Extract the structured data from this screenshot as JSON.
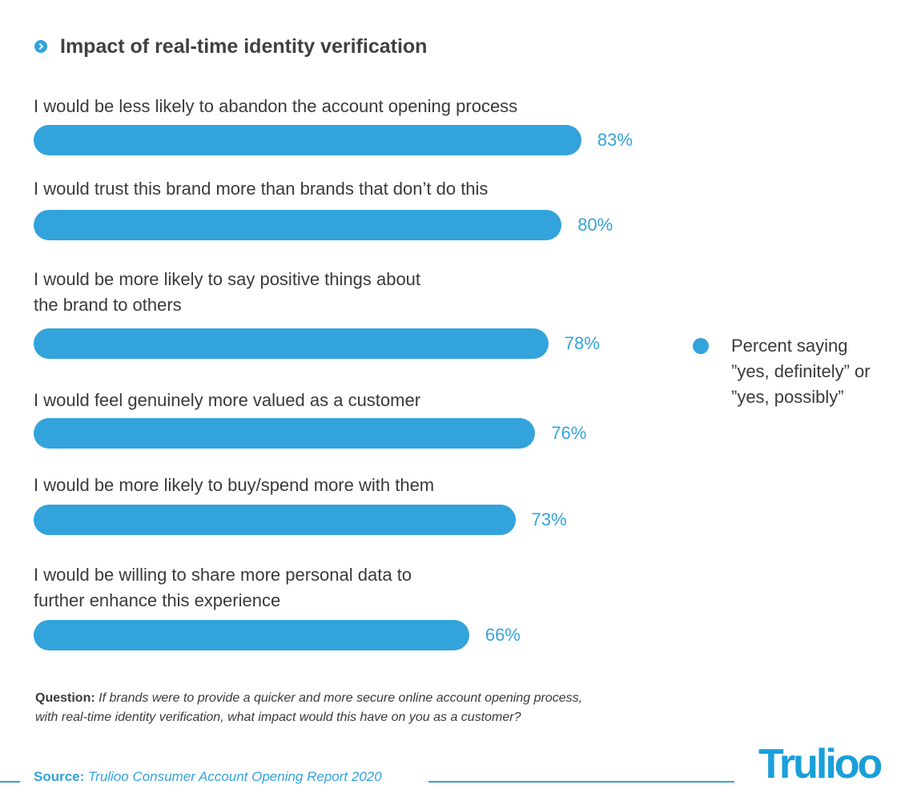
{
  "chart_data": {
    "type": "bar",
    "orientation": "horizontal",
    "title": "Impact of real-time identity verification",
    "categories": [
      "I would be less likely to abandon the account opening process",
      "I would trust this brand more than brands that don’t do this",
      "I would be more likely to say positive things about\nthe brand to others",
      "I would feel genuinely more valued as a customer",
      "I would be more likely to buy/spend more with them",
      "I would be willing to share more personal data to\nfurther enhance this experience"
    ],
    "series": [
      {
        "name": "Percent saying\n”yes, definitely” or\n”yes, possibly”",
        "color": "#33a3dc",
        "values": [
          83,
          80,
          78,
          76,
          73,
          66
        ],
        "value_labels": [
          "83%",
          "80%",
          "78%",
          "76%",
          "73%",
          "66%"
        ]
      }
    ],
    "xlim": [
      0,
      100
    ],
    "question_label": "Question:",
    "question": "If brands were to provide a quicker and more secure online account opening process,\nwith real-time identity verification, what impact would this have on you as a customer?",
    "source_label": "Source:",
    "source": "Trulioo Consumer Account Opening Report 2020",
    "logo": "Trulioo"
  }
}
